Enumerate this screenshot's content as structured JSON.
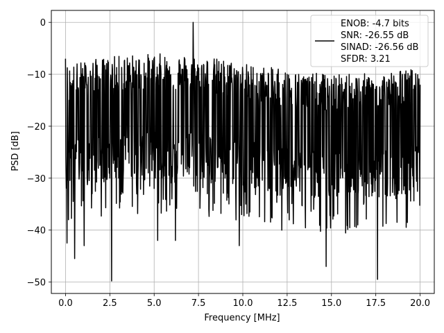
{
  "chart_data": {
    "type": "line",
    "title": "",
    "xlabel": "Frequency [MHz]",
    "ylabel": "PSD [dB]",
    "xlim": [
      -0.8,
      20.8
    ],
    "ylim": [
      -52.2,
      2.3
    ],
    "xticks": [
      0.0,
      2.5,
      5.0,
      7.5,
      10.0,
      12.5,
      15.0,
      17.5,
      20.0
    ],
    "xtick_labels": [
      "0.0",
      "2.5",
      "5.0",
      "7.5",
      "10.0",
      "12.5",
      "15.0",
      "17.5",
      "20.0"
    ],
    "yticks": [
      0,
      -10,
      -20,
      -30,
      -40,
      -50
    ],
    "ytick_labels": [
      "0",
      "−10",
      "−20",
      "−30",
      "−40",
      "−50"
    ],
    "grid": true,
    "legend_position": "upper-right",
    "line_color": "#000000",
    "series": [
      {
        "x": [
          0.0,
          0.04,
          0.08,
          0.12,
          0.16,
          0.2,
          0.3,
          0.4,
          0.5,
          0.52,
          0.6,
          0.8,
          1.0,
          1.05,
          1.2,
          1.5,
          1.8,
          2.0,
          2.3,
          2.5,
          2.6,
          2.8,
          3.0,
          3.5,
          4.0,
          4.5,
          5.0,
          5.2,
          5.5,
          6.0,
          6.2,
          6.5,
          7.0,
          7.2,
          7.5,
          8.0,
          8.5,
          9.0,
          9.5,
          9.8,
          10.0,
          10.5,
          11.0,
          11.5,
          12.0,
          12.2,
          12.5,
          13.0,
          13.5,
          14.0,
          14.5,
          14.7,
          15.0,
          15.5,
          16.0,
          16.5,
          17.0,
          17.5,
          17.6,
          18.0,
          18.5,
          19.0,
          19.5,
          20.0
        ],
        "y": [
          -7,
          -29,
          -42.5,
          -14,
          -38,
          -15,
          -25,
          -14,
          -31,
          -45.5,
          -13,
          -27,
          -15,
          -43,
          -12,
          -33,
          -14,
          -28,
          -12,
          -30,
          -49.8,
          -14,
          -30,
          -13,
          -31,
          -12,
          -32,
          -42,
          -11,
          -34,
          -42,
          -10,
          -28,
          0,
          -11,
          -33,
          -10,
          -30,
          -11,
          -43,
          -10,
          -31,
          -10,
          -32,
          -9,
          -40,
          -10,
          -30,
          -11,
          -36,
          -10,
          -47,
          -11,
          -30,
          -10,
          -33,
          -11,
          -30,
          -49.5,
          -12,
          -30,
          -10,
          -28,
          -12
        ]
      }
    ],
    "legend": {
      "entries": [
        "ENOB: -4.7 bits",
        "SNR: -26.55 dB",
        "SINAD: -26.56 dB",
        "SFDR: 3.21"
      ]
    }
  }
}
